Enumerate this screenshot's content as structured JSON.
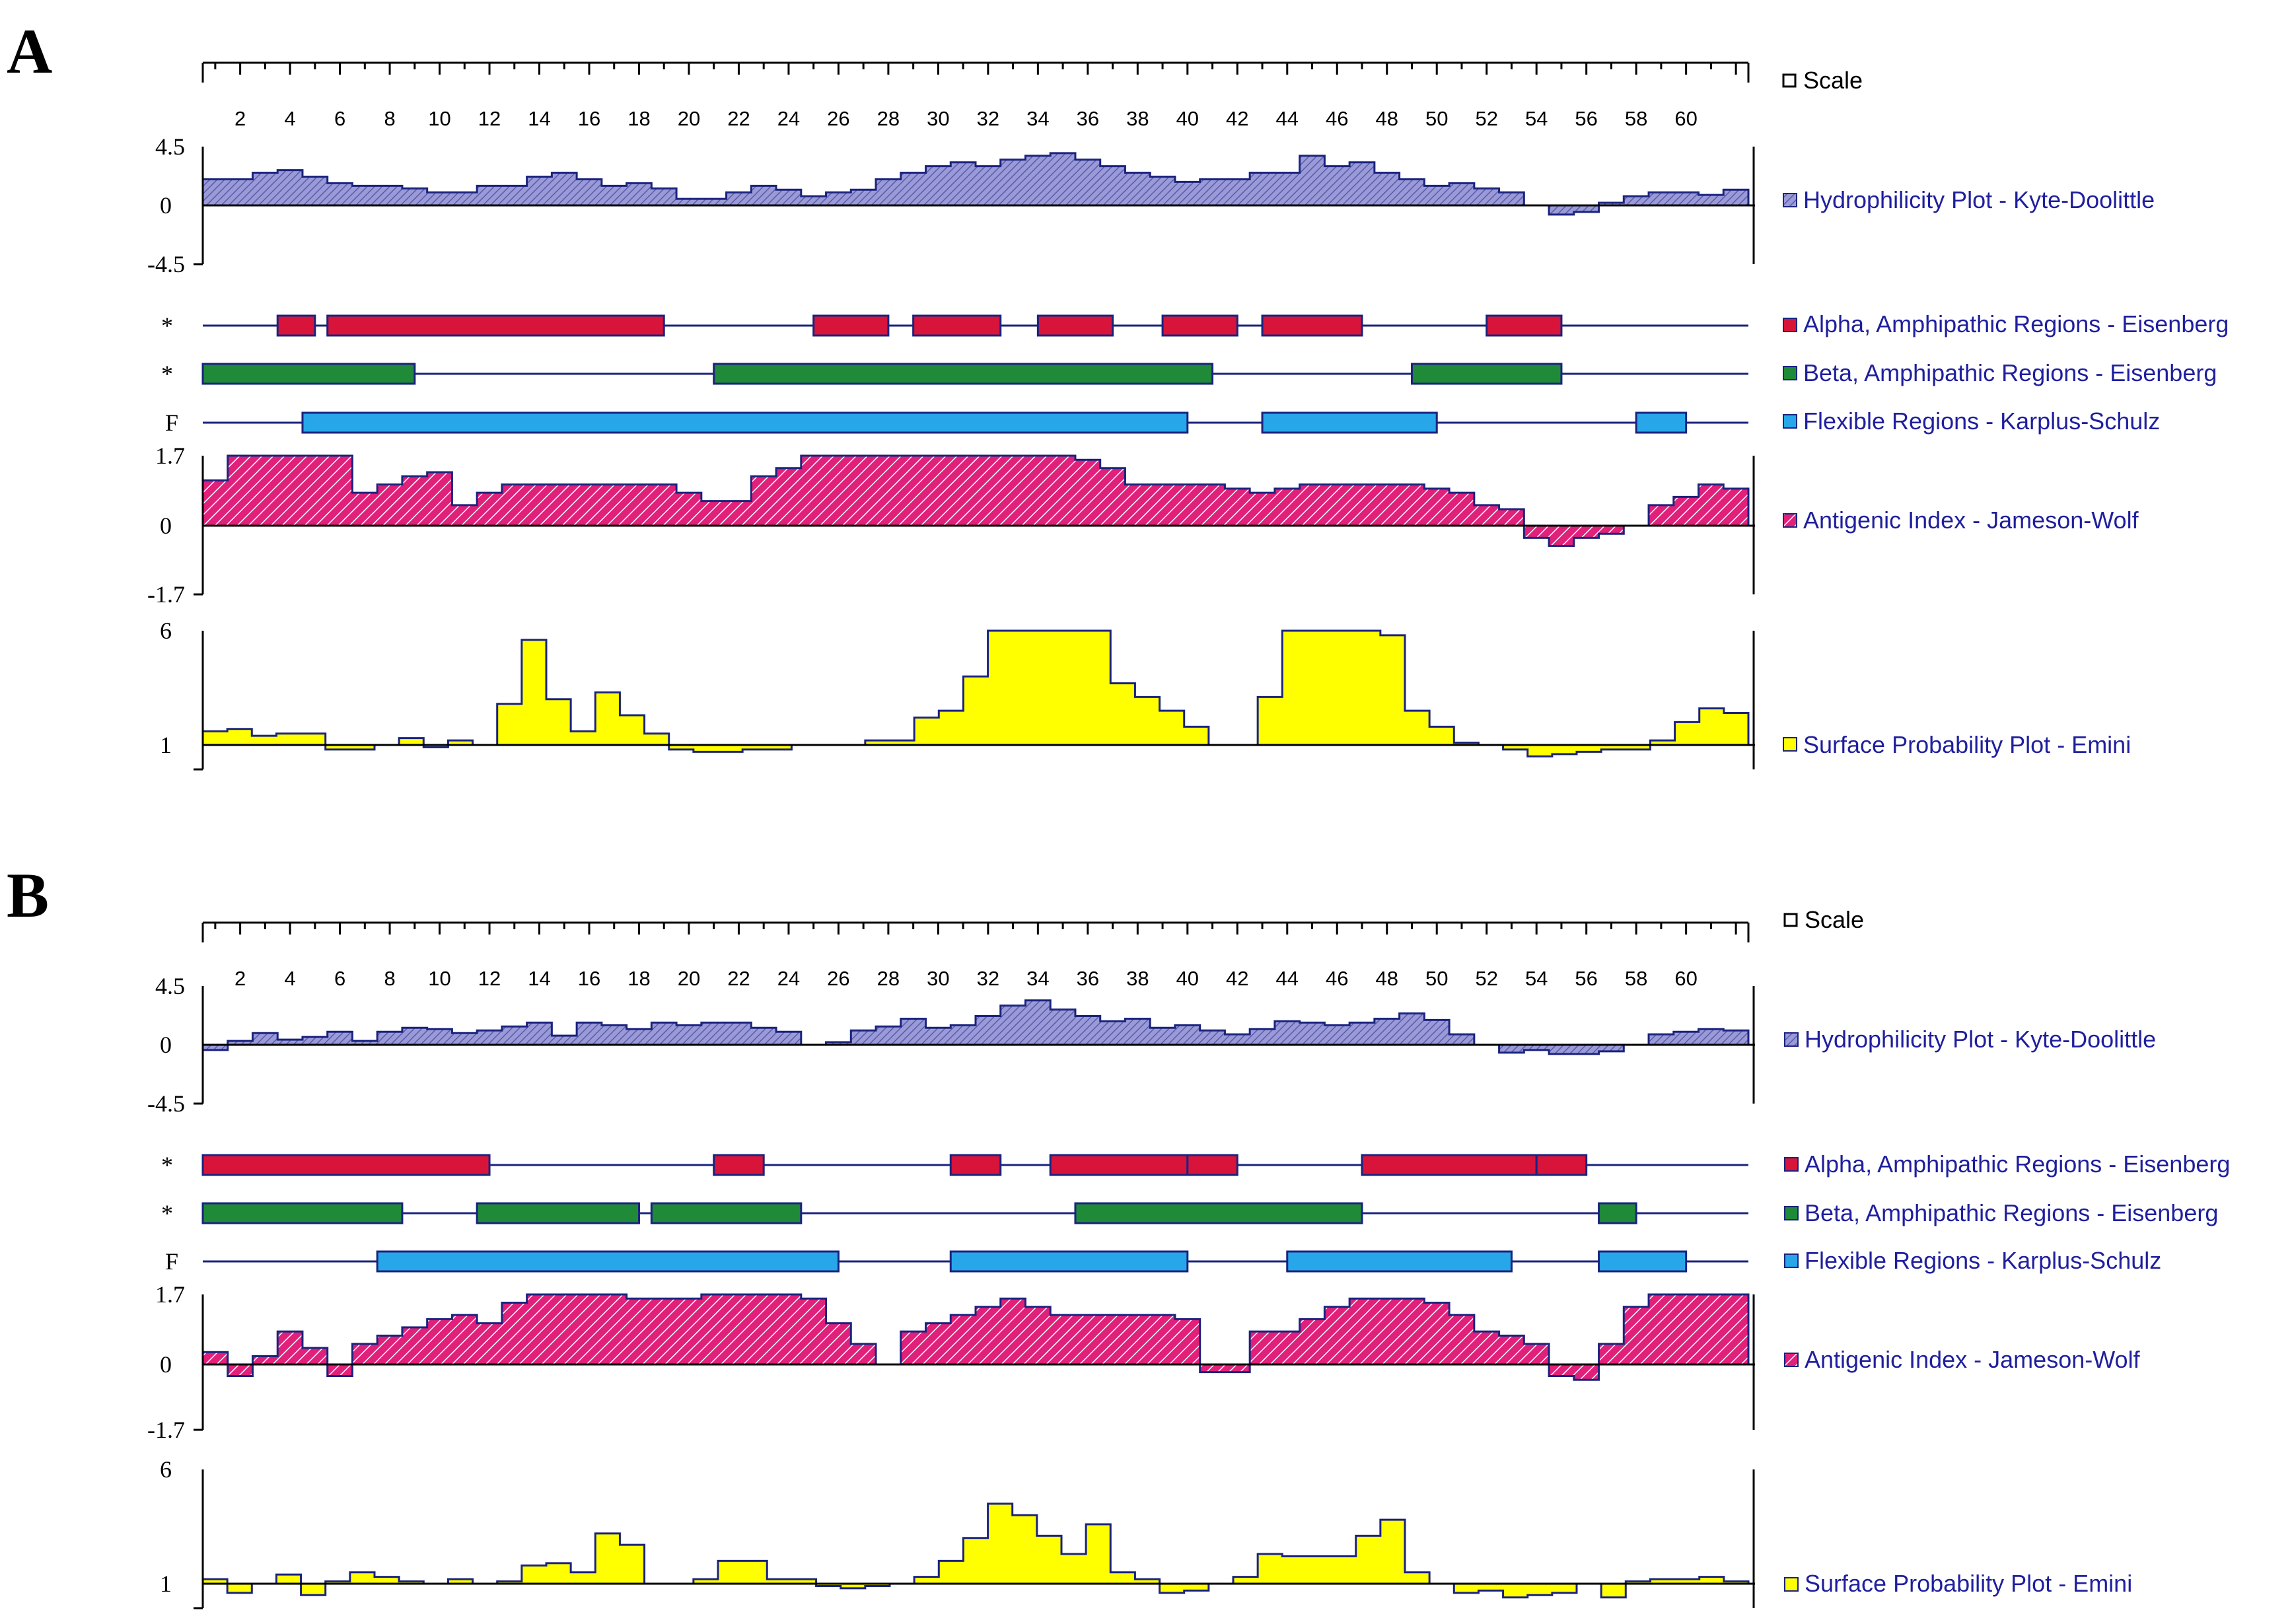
{
  "colors": {
    "hydrophilicity": "#8c8cd0",
    "alpha": "#d8143a",
    "beta": "#1f8a38",
    "flexible": "#27a7ea",
    "antigenic": "#e0207a",
    "surface": "#ffff00",
    "outline": "#1a237e",
    "legend_text": "#1f1f9e"
  },
  "chart_data": [
    {
      "panel": "A",
      "type": "area",
      "x_ticks": [
        2,
        4,
        6,
        8,
        10,
        12,
        14,
        16,
        18,
        20,
        22,
        24,
        26,
        28,
        30,
        32,
        34,
        36,
        38,
        40,
        42,
        44,
        46,
        48,
        50,
        52,
        54,
        56,
        58,
        60
      ],
      "x_range": [
        1,
        62
      ],
      "legend": {
        "scale": "Scale",
        "hydrophilicity": "Hydrophilicity Plot - Kyte-Doolittle",
        "alpha": "Alpha, Amphipathic Regions - Eisenberg",
        "beta": "Beta, Amphipathic Regions - Eisenberg",
        "flexible": "Flexible Regions - Karplus-Schulz",
        "antigenic": "Antigenic Index - Jameson-Wolf",
        "surface": "Surface Probability Plot - Emini"
      },
      "track_labels": {
        "alpha": "*",
        "beta": "*",
        "flexible": "F"
      },
      "hydrophilicity": {
        "y_ticks": [
          "4.5",
          "0",
          "-4.5"
        ],
        "ylim": [
          -4.5,
          4.5
        ],
        "values": [
          2.0,
          2.0,
          2.5,
          2.7,
          2.2,
          1.7,
          1.5,
          1.5,
          1.3,
          1.0,
          1.0,
          1.5,
          1.5,
          2.2,
          2.5,
          2.0,
          1.5,
          1.7,
          1.3,
          0.5,
          0.5,
          1.0,
          1.5,
          1.2,
          0.7,
          1.0,
          1.2,
          2.0,
          2.5,
          3.0,
          3.3,
          3.0,
          3.5,
          3.8,
          4.0,
          3.5,
          3.0,
          2.5,
          2.2,
          1.8,
          2.0,
          2.0,
          2.5,
          2.5,
          3.8,
          3.0,
          3.3,
          2.5,
          2.0,
          1.5,
          1.7,
          1.3,
          1.0,
          0.0,
          -0.7,
          -0.5,
          0.2,
          0.7,
          1.0,
          1.0,
          0.8,
          1.2
        ]
      },
      "alpha": [
        [
          4,
          4.5
        ],
        [
          6,
          18.5
        ],
        [
          25.5,
          27.5
        ],
        [
          29.5,
          32
        ],
        [
          34.5,
          36.5
        ],
        [
          39.5,
          41.5
        ],
        [
          43.5,
          46.5
        ],
        [
          52.5,
          54.5
        ]
      ],
      "beta": [
        [
          1,
          8.5
        ],
        [
          21.5,
          40.5
        ],
        [
          49.5,
          54.5
        ]
      ],
      "flexible": [
        [
          5,
          39.5
        ],
        [
          43.5,
          49.5
        ],
        [
          58.5,
          59.5
        ]
      ],
      "antigenic": {
        "y_ticks": [
          "1.7",
          "0",
          "-1.7"
        ],
        "ylim": [
          -1.7,
          1.7
        ],
        "values": [
          1.1,
          1.7,
          1.7,
          1.7,
          1.7,
          1.7,
          0.8,
          1.0,
          1.2,
          1.3,
          0.5,
          0.8,
          1.0,
          1.0,
          1.0,
          1.0,
          1.0,
          1.0,
          1.0,
          0.8,
          0.6,
          0.6,
          1.2,
          1.4,
          1.7,
          1.7,
          1.7,
          1.7,
          1.7,
          1.7,
          1.7,
          1.7,
          1.7,
          1.7,
          1.7,
          1.6,
          1.4,
          1.0,
          1.0,
          1.0,
          1.0,
          0.9,
          0.8,
          0.9,
          1.0,
          1.0,
          1.0,
          1.0,
          1.0,
          0.9,
          0.8,
          0.5,
          0.4,
          -0.3,
          -0.5,
          -0.3,
          -0.2,
          0.0,
          0.5,
          0.7,
          1.0,
          0.9
        ]
      },
      "surface": {
        "y_ticks": [
          "6",
          "1"
        ],
        "ylim": [
          0,
          6
        ],
        "baseline": 1,
        "values": [
          1.6,
          1.7,
          1.4,
          1.5,
          1.5,
          0.8,
          0.8,
          1.0,
          1.3,
          0.9,
          1.2,
          1.0,
          2.8,
          5.6,
          3.0,
          1.6,
          3.3,
          2.3,
          1.5,
          0.8,
          0.7,
          0.7,
          0.8,
          0.8,
          1.0,
          1.0,
          1.0,
          1.2,
          1.2,
          2.2,
          2.5,
          4.0,
          6.0,
          6.0,
          6.0,
          6.0,
          6.0,
          3.7,
          3.1,
          2.5,
          1.8,
          1.0,
          1.0,
          3.1,
          6.0,
          6.0,
          6.0,
          6.0,
          5.8,
          2.5,
          1.8,
          1.1,
          1.0,
          0.8,
          0.5,
          0.6,
          0.7,
          0.8,
          0.8,
          1.2,
          2.0,
          2.6,
          2.4
        ]
      }
    },
    {
      "panel": "B",
      "type": "area",
      "x_ticks": [
        2,
        4,
        6,
        8,
        10,
        12,
        14,
        16,
        18,
        20,
        22,
        24,
        26,
        28,
        30,
        32,
        34,
        36,
        38,
        40,
        42,
        44,
        46,
        48,
        50,
        52,
        54,
        56,
        58,
        60
      ],
      "x_range": [
        1,
        62
      ],
      "legend": {
        "scale": "Scale",
        "hydrophilicity": "Hydrophilicity Plot - Kyte-Doolittle",
        "alpha": "Alpha, Amphipathic Regions - Eisenberg",
        "beta": "Beta, Amphipathic Regions - Eisenberg",
        "flexible": "Flexible Regions - Karplus-Schulz",
        "antigenic": "Antigenic Index - Jameson-Wolf",
        "surface": "Surface Probability Plot - Emini"
      },
      "track_labels": {
        "alpha": "*",
        "beta": "*",
        "flexible": "F"
      },
      "hydrophilicity": {
        "y_ticks": [
          "4.5",
          "0",
          "-4.5"
        ],
        "ylim": [
          -4.5,
          4.5
        ],
        "values": [
          -0.4,
          0.3,
          0.9,
          0.4,
          0.6,
          1.0,
          0.3,
          1.0,
          1.3,
          1.2,
          0.9,
          1.1,
          1.4,
          1.7,
          0.7,
          1.7,
          1.5,
          1.2,
          1.7,
          1.5,
          1.7,
          1.7,
          1.3,
          1.0,
          0.0,
          0.2,
          1.1,
          1.4,
          2.0,
          1.3,
          1.5,
          2.2,
          3.0,
          3.4,
          2.7,
          2.2,
          1.8,
          2.0,
          1.3,
          1.5,
          1.1,
          0.8,
          1.2,
          1.8,
          1.7,
          1.5,
          1.7,
          2.0,
          2.4,
          1.9,
          0.8,
          0.0,
          -0.6,
          -0.4,
          -0.7,
          -0.7,
          -0.5,
          0.0,
          0.8,
          1.0,
          1.2,
          1.1
        ]
      },
      "alpha": [
        [
          1,
          11.5
        ],
        [
          21.5,
          22.5
        ],
        [
          31,
          32
        ],
        [
          35,
          39.5
        ],
        [
          40.5,
          41.5
        ],
        [
          47.5,
          53.5
        ],
        [
          54.5,
          55.5
        ]
      ],
      "beta": [
        [
          1,
          8
        ],
        [
          12,
          17.5
        ],
        [
          19,
          24
        ],
        [
          36,
          46.5
        ],
        [
          57,
          57.5
        ]
      ],
      "flexible": [
        [
          8,
          25.5
        ],
        [
          31,
          39.5
        ],
        [
          44.5,
          52.5
        ],
        [
          57,
          59.5
        ]
      ],
      "antigenic": {
        "y_ticks": [
          "1.7",
          "0",
          "-1.7"
        ],
        "ylim": [
          -1.7,
          1.7
        ],
        "values": [
          0.3,
          -0.3,
          0.2,
          0.8,
          0.4,
          -0.3,
          0.5,
          0.7,
          0.9,
          1.1,
          1.2,
          1.0,
          1.5,
          1.7,
          1.7,
          1.7,
          1.7,
          1.6,
          1.6,
          1.6,
          1.7,
          1.7,
          1.7,
          1.7,
          1.6,
          1.0,
          0.5,
          0.0,
          0.8,
          1.0,
          1.2,
          1.4,
          1.6,
          1.4,
          1.2,
          1.2,
          1.2,
          1.2,
          1.2,
          1.1,
          -0.2,
          -0.2,
          0.8,
          0.8,
          1.1,
          1.4,
          1.6,
          1.6,
          1.6,
          1.5,
          1.2,
          0.8,
          0.7,
          0.5,
          -0.3,
          -0.4,
          0.5,
          1.4,
          1.7,
          1.7,
          1.7,
          1.7
        ]
      },
      "surface": {
        "y_ticks": [
          "6",
          "1"
        ],
        "ylim": [
          0,
          6
        ],
        "baseline": 1,
        "values": [
          1.2,
          0.6,
          1.0,
          1.4,
          0.5,
          1.1,
          1.5,
          1.3,
          1.1,
          1.0,
          1.2,
          1.0,
          1.1,
          1.8,
          1.9,
          1.5,
          3.2,
          2.7,
          1.0,
          1.0,
          1.2,
          2.0,
          2.0,
          1.2,
          1.2,
          0.9,
          0.8,
          0.9,
          1.0,
          1.3,
          2.0,
          3.0,
          4.5,
          4.0,
          3.1,
          2.3,
          3.6,
          1.5,
          1.2,
          0.6,
          0.7,
          1.0,
          1.3,
          2.3,
          2.2,
          2.2,
          2.2,
          3.1,
          3.8,
          1.5,
          1.0,
          0.6,
          0.7,
          0.4,
          0.5,
          0.6,
          1.0,
          0.4,
          1.1,
          1.2,
          1.2,
          1.3,
          1.1
        ]
      }
    }
  ]
}
